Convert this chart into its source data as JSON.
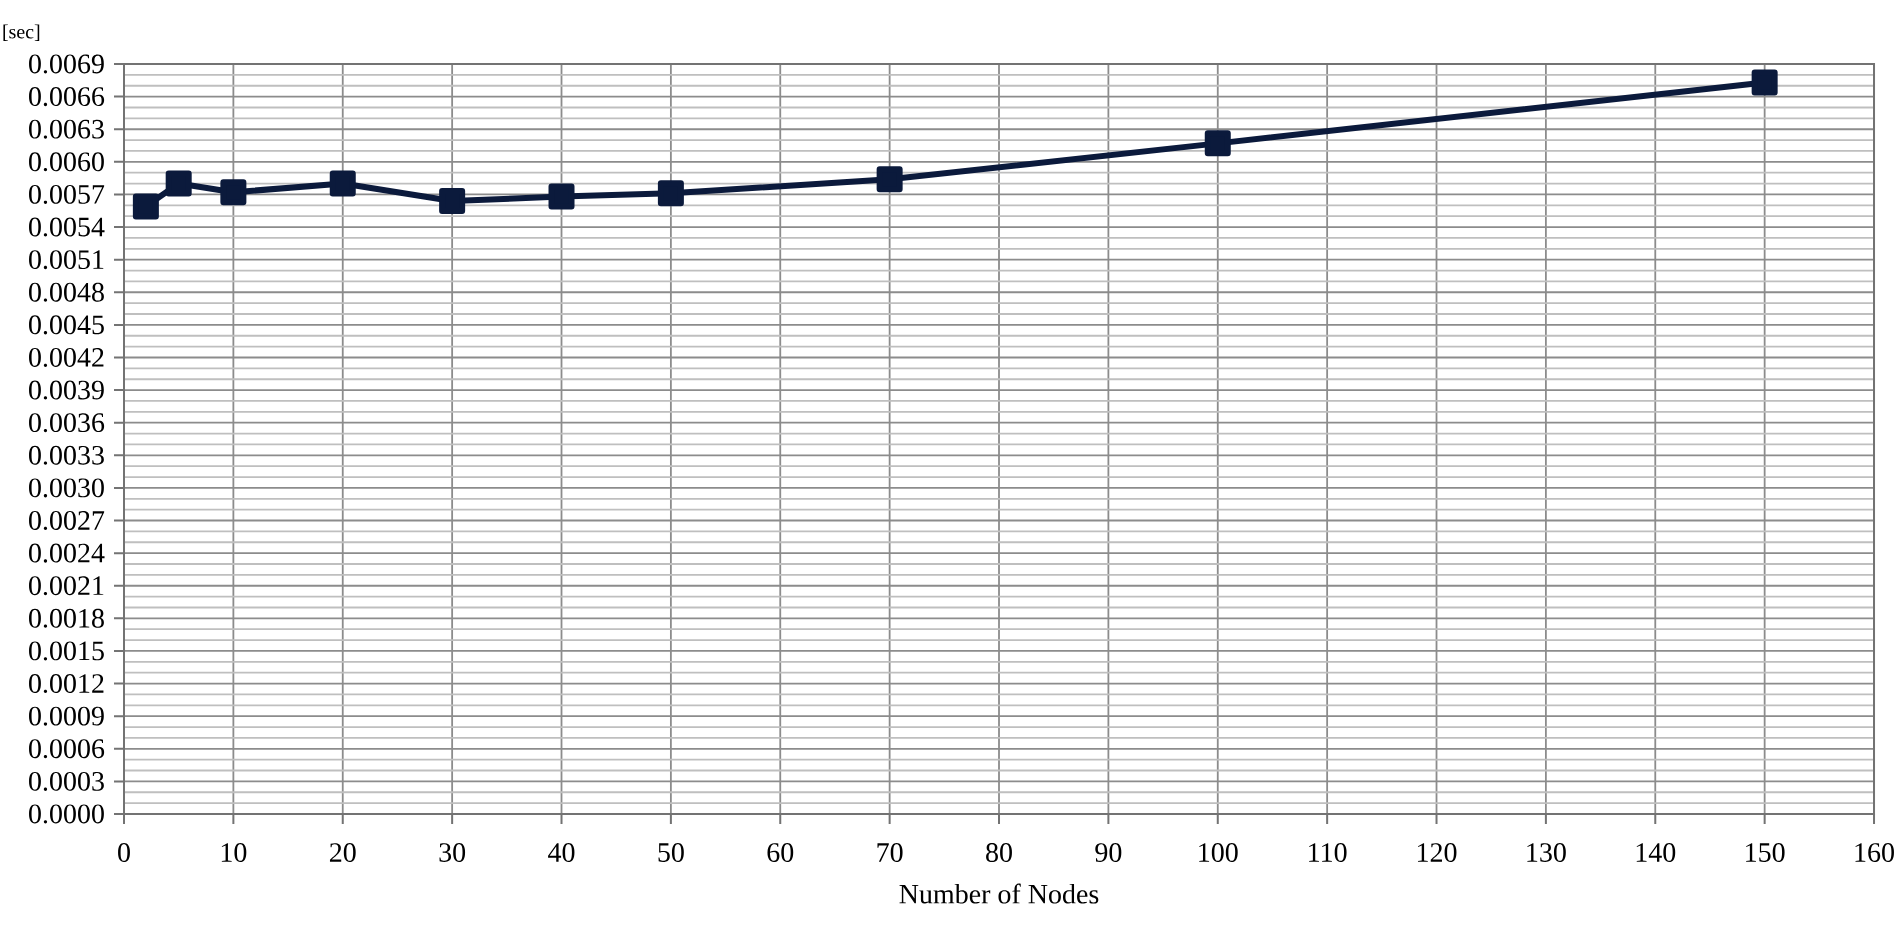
{
  "chart_data": {
    "type": "line",
    "xlabel": "Number of Nodes",
    "ylabel": "[sec]",
    "x": [
      2,
      5,
      10,
      20,
      30,
      40,
      50,
      70,
      100,
      150
    ],
    "series": [
      {
        "color": "#0b1a3c",
        "values": [
          0.00559,
          0.0058,
          0.00572,
          0.0058,
          0.00564,
          0.00568,
          0.00571,
          0.00584,
          0.00617,
          0.00673
        ]
      }
    ],
    "xlim": [
      0,
      160
    ],
    "xticks": [
      0,
      10,
      20,
      30,
      40,
      50,
      60,
      70,
      80,
      90,
      100,
      110,
      120,
      130,
      140,
      150,
      160
    ],
    "ylim": [
      0,
      0.0069
    ],
    "yticks": [
      {
        "value": 0,
        "label": "0.0000"
      },
      {
        "value": 0.0003,
        "label": "0.0003"
      },
      {
        "value": 0.0006,
        "label": "0.0006"
      },
      {
        "value": 0.0009,
        "label": "0.0009"
      },
      {
        "value": 0.0012,
        "label": "0.0012"
      },
      {
        "value": 0.0015,
        "label": "0.0015"
      },
      {
        "value": 0.0018,
        "label": "0.0018"
      },
      {
        "value": 0.0021,
        "label": "0.0021"
      },
      {
        "value": 0.0024,
        "label": "0.0024"
      },
      {
        "value": 0.0027,
        "label": "0.0027"
      },
      {
        "value": 0.003,
        "label": "0.0030"
      },
      {
        "value": 0.0033,
        "label": "0.0033"
      },
      {
        "value": 0.0036,
        "label": "0.0036"
      },
      {
        "value": 0.0039,
        "label": "0.0039"
      },
      {
        "value": 0.0042,
        "label": "0.0042"
      },
      {
        "value": 0.0045,
        "label": "0.0045"
      },
      {
        "value": 0.0048,
        "label": "0.0048"
      },
      {
        "value": 0.0051,
        "label": "0.0051"
      },
      {
        "value": 0.0054,
        "label": "0.0054"
      },
      {
        "value": 0.0057,
        "label": "0.0057"
      },
      {
        "value": 0.006,
        "label": "0.0060"
      },
      {
        "value": 0.0063,
        "label": "0.0063"
      },
      {
        "value": 0.0066,
        "label": "0.0066"
      },
      {
        "value": 0.0069,
        "label": "0.0069"
      }
    ],
    "grid": true,
    "marker": "square",
    "line_style": "solid"
  }
}
